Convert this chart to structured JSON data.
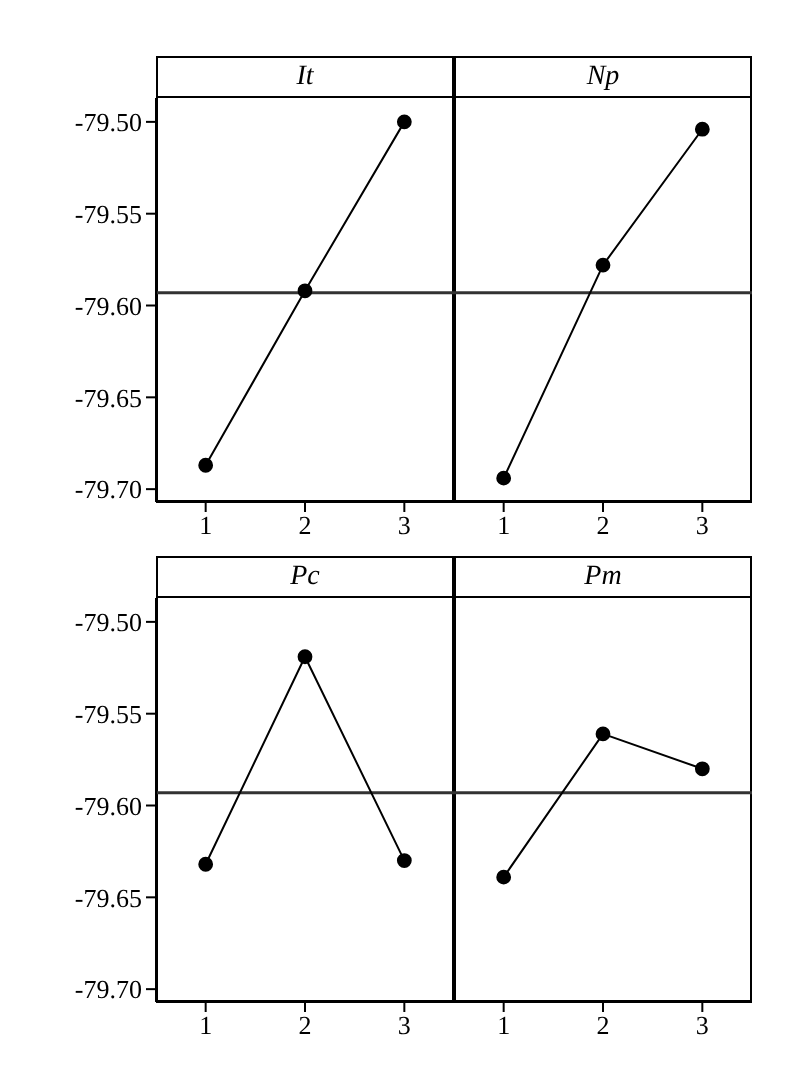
{
  "chart_data": [
    {
      "type": "line",
      "title": "It",
      "categories": [
        "1",
        "2",
        "3"
      ],
      "values": [
        -79.687,
        -79.592,
        -79.5
      ],
      "color": "#000000",
      "marker": "circle",
      "grid": false,
      "ylim": [
        -79.707,
        -79.487
      ],
      "yticks": [
        {
          "value": -79.5,
          "label": "-79.50"
        },
        {
          "value": -79.55,
          "label": "-79.55"
        },
        {
          "value": -79.6,
          "label": "-79.60"
        },
        {
          "value": -79.65,
          "label": "-79.65"
        },
        {
          "value": -79.7,
          "label": "-79.70"
        }
      ],
      "ref_lines": [
        {
          "axis": "y",
          "value": -79.593,
          "color": "#333333"
        }
      ]
    },
    {
      "type": "line",
      "title": "Np",
      "categories": [
        "1",
        "2",
        "3"
      ],
      "values": [
        -79.694,
        -79.578,
        -79.504
      ],
      "color": "#000000",
      "marker": "circle",
      "grid": false,
      "tick_labels": "x",
      "ylim": [
        -79.707,
        -79.487
      ],
      "ref_lines": [
        {
          "axis": "y",
          "value": -79.593,
          "color": "#333333"
        }
      ]
    },
    {
      "type": "line",
      "title": "Pc",
      "categories": [
        "1",
        "2",
        "3"
      ],
      "values": [
        -79.632,
        -79.519,
        -79.63
      ],
      "color": "#000000",
      "marker": "circle",
      "grid": false,
      "ylim": [
        -79.707,
        -79.487
      ],
      "yticks": [
        {
          "value": -79.5,
          "label": "-79.50"
        },
        {
          "value": -79.55,
          "label": "-79.55"
        },
        {
          "value": -79.6,
          "label": "-79.60"
        },
        {
          "value": -79.65,
          "label": "-79.65"
        },
        {
          "value": -79.7,
          "label": "-79.70"
        }
      ],
      "ref_lines": [
        {
          "axis": "y",
          "value": -79.593,
          "color": "#333333"
        }
      ]
    },
    {
      "type": "line",
      "title": "Pm",
      "categories": [
        "1",
        "2",
        "3"
      ],
      "values": [
        -79.639,
        -79.561,
        -79.58
      ],
      "color": "#000000",
      "marker": "circle",
      "grid": false,
      "tick_labels": "x",
      "ylim": [
        -79.707,
        -79.487
      ],
      "ref_lines": [
        {
          "axis": "y",
          "value": -79.593,
          "color": "#333333"
        }
      ]
    }
  ]
}
